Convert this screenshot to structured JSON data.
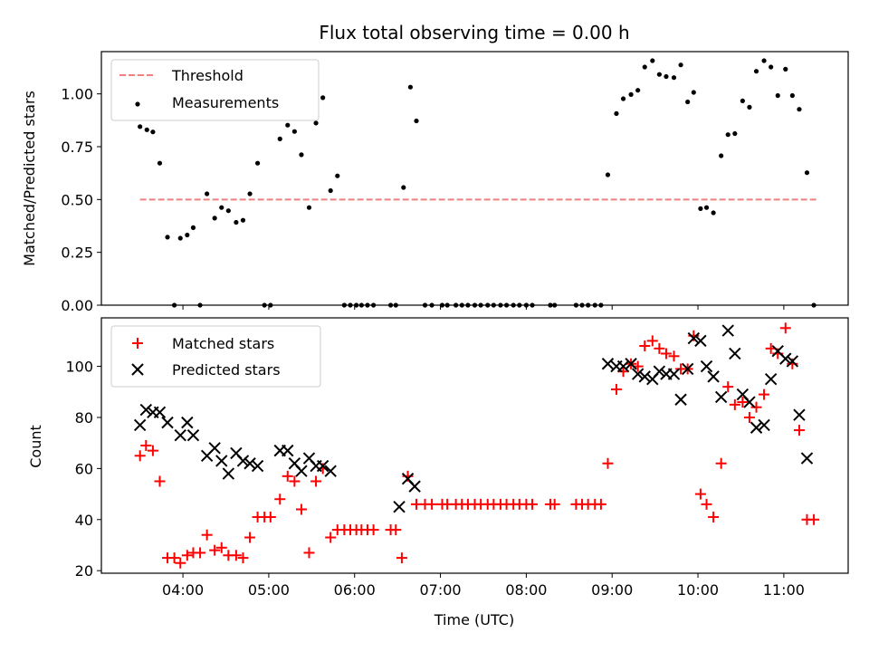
{
  "chart_data": [
    {
      "type": "scatter",
      "title": "Flux total observing time = 0.00 h",
      "ylabel": "Matched/Predicted stars",
      "xlabel": "",
      "x_unit": "hours UTC",
      "xlim": [
        3.05,
        11.75
      ],
      "ylim": [
        0,
        1.2
      ],
      "yticks": [
        0.0,
        0.25,
        0.5,
        0.75,
        1.0
      ],
      "yticklabels": [
        "0.00",
        "0.25",
        "0.50",
        "0.75",
        "1.00"
      ],
      "grid": false,
      "legend": {
        "placement": "upper-left",
        "entries": [
          "Threshold",
          "Measurements"
        ]
      },
      "series": [
        {
          "name": "Threshold",
          "kind": "dashed-line",
          "color": "#f08080",
          "points": [
            [
              3.5,
              0.5
            ],
            [
              11.4,
              0.5
            ]
          ]
        },
        {
          "name": "Measurements",
          "kind": "dots",
          "color": "#000000",
          "points": [
            [
              3.5,
              0.845
            ],
            [
              3.58,
              0.83
            ],
            [
              3.65,
              0.82
            ],
            [
              3.73,
              0.672
            ],
            [
              3.82,
              0.322
            ],
            [
              3.9,
              0.0
            ],
            [
              3.97,
              0.317
            ],
            [
              4.05,
              0.332
            ],
            [
              4.12,
              0.367
            ],
            [
              4.2,
              0.0
            ],
            [
              4.28,
              0.527
            ],
            [
              4.37,
              0.412
            ],
            [
              4.45,
              0.462
            ],
            [
              4.53,
              0.447
            ],
            [
              4.62,
              0.392
            ],
            [
              4.7,
              0.402
            ],
            [
              4.78,
              0.527
            ],
            [
              4.87,
              0.672
            ],
            [
              4.95,
              0.0
            ],
            [
              5.02,
              0.0
            ],
            [
              5.13,
              0.787
            ],
            [
              5.22,
              0.852
            ],
            [
              5.3,
              0.822
            ],
            [
              5.38,
              0.712
            ],
            [
              5.47,
              0.462
            ],
            [
              5.55,
              0.862
            ],
            [
              5.63,
              0.982
            ],
            [
              5.72,
              0.542
            ],
            [
              5.8,
              0.612
            ],
            [
              5.88,
              0.0
            ],
            [
              5.95,
              0.0
            ],
            [
              6.02,
              0.0
            ],
            [
              6.08,
              0.0
            ],
            [
              6.15,
              0.0
            ],
            [
              6.22,
              0.0
            ],
            [
              6.42,
              0.0
            ],
            [
              6.48,
              0.0
            ],
            [
              6.57,
              0.557
            ],
            [
              6.65,
              1.032
            ],
            [
              6.72,
              0.872
            ],
            [
              6.82,
              0.0
            ],
            [
              6.9,
              0.0
            ],
            [
              7.02,
              0.0
            ],
            [
              7.08,
              0.0
            ],
            [
              7.18,
              0.0
            ],
            [
              7.25,
              0.0
            ],
            [
              7.32,
              0.0
            ],
            [
              7.4,
              0.0
            ],
            [
              7.47,
              0.0
            ],
            [
              7.55,
              0.0
            ],
            [
              7.62,
              0.0
            ],
            [
              7.7,
              0.0
            ],
            [
              7.77,
              0.0
            ],
            [
              7.85,
              0.0
            ],
            [
              7.92,
              0.0
            ],
            [
              8.0,
              0.0
            ],
            [
              8.07,
              0.0
            ],
            [
              8.28,
              0.0
            ],
            [
              8.33,
              0.0
            ],
            [
              8.58,
              0.0
            ],
            [
              8.65,
              0.0
            ],
            [
              8.72,
              0.0
            ],
            [
              8.8,
              0.0
            ],
            [
              8.87,
              0.0
            ],
            [
              8.95,
              0.617
            ],
            [
              9.05,
              0.907
            ],
            [
              9.13,
              0.977
            ],
            [
              9.22,
              0.997
            ],
            [
              9.3,
              1.017
            ],
            [
              9.38,
              1.127
            ],
            [
              9.47,
              1.157
            ],
            [
              9.55,
              1.092
            ],
            [
              9.63,
              1.082
            ],
            [
              9.72,
              1.077
            ],
            [
              9.8,
              1.137
            ],
            [
              9.88,
              0.962
            ],
            [
              9.95,
              1.007
            ],
            [
              10.03,
              0.457
            ],
            [
              10.1,
              0.462
            ],
            [
              10.18,
              0.437
            ],
            [
              10.27,
              0.707
            ],
            [
              10.35,
              0.807
            ],
            [
              10.43,
              0.812
            ],
            [
              10.52,
              0.967
            ],
            [
              10.6,
              0.937
            ],
            [
              10.68,
              1.107
            ],
            [
              10.77,
              1.157
            ],
            [
              10.85,
              1.127
            ],
            [
              10.93,
              0.992
            ],
            [
              11.02,
              1.117
            ],
            [
              11.1,
              0.992
            ],
            [
              11.18,
              0.927
            ],
            [
              11.27,
              0.627
            ],
            [
              11.35,
              0.0
            ]
          ]
        }
      ]
    },
    {
      "type": "scatter",
      "title": "",
      "ylabel": "Count",
      "xlabel": "Time (UTC)",
      "x_unit": "hours UTC",
      "xlim": [
        3.05,
        11.75
      ],
      "ylim": [
        19,
        119
      ],
      "yticks": [
        20,
        40,
        60,
        80,
        100
      ],
      "yticklabels": [
        "20",
        "40",
        "60",
        "80",
        "100"
      ],
      "xticks": [
        4,
        5,
        6,
        7,
        8,
        9,
        10,
        11
      ],
      "xticklabels": [
        "04:00",
        "05:00",
        "06:00",
        "07:00",
        "08:00",
        "09:00",
        "10:00",
        "11:00"
      ],
      "grid": false,
      "legend": {
        "placement": "upper-left",
        "entries": [
          "Matched stars",
          "Predicted stars"
        ]
      },
      "series": [
        {
          "name": "Matched stars",
          "kind": "plus",
          "color": "#ff0000",
          "points": [
            [
              3.5,
              65
            ],
            [
              3.57,
              69
            ],
            [
              3.65,
              67
            ],
            [
              3.73,
              55
            ],
            [
              3.82,
              25
            ],
            [
              3.9,
              25
            ],
            [
              3.97,
              23
            ],
            [
              4.05,
              26
            ],
            [
              4.12,
              27
            ],
            [
              4.2,
              27
            ],
            [
              4.28,
              34
            ],
            [
              4.37,
              28
            ],
            [
              4.45,
              29
            ],
            [
              4.53,
              26
            ],
            [
              4.62,
              26
            ],
            [
              4.7,
              25
            ],
            [
              4.78,
              33
            ],
            [
              4.87,
              41
            ],
            [
              4.95,
              41
            ],
            [
              5.02,
              41
            ],
            [
              5.13,
              48
            ],
            [
              5.22,
              57
            ],
            [
              5.3,
              55
            ],
            [
              5.38,
              44
            ],
            [
              5.47,
              27
            ],
            [
              5.55,
              55
            ],
            [
              5.63,
              60
            ],
            [
              5.72,
              33
            ],
            [
              5.8,
              36
            ],
            [
              5.88,
              36
            ],
            [
              5.95,
              36
            ],
            [
              6.02,
              36
            ],
            [
              6.08,
              36
            ],
            [
              6.15,
              36
            ],
            [
              6.22,
              36
            ],
            [
              6.42,
              36
            ],
            [
              6.48,
              36
            ],
            [
              6.55,
              25
            ],
            [
              6.62,
              57
            ],
            [
              6.72,
              46
            ],
            [
              6.82,
              46
            ],
            [
              6.9,
              46
            ],
            [
              7.02,
              46
            ],
            [
              7.08,
              46
            ],
            [
              7.18,
              46
            ],
            [
              7.25,
              46
            ],
            [
              7.32,
              46
            ],
            [
              7.4,
              46
            ],
            [
              7.47,
              46
            ],
            [
              7.55,
              46
            ],
            [
              7.62,
              46
            ],
            [
              7.7,
              46
            ],
            [
              7.77,
              46
            ],
            [
              7.85,
              46
            ],
            [
              7.92,
              46
            ],
            [
              8.0,
              46
            ],
            [
              8.07,
              46
            ],
            [
              8.28,
              46
            ],
            [
              8.33,
              46
            ],
            [
              8.58,
              46
            ],
            [
              8.65,
              46
            ],
            [
              8.72,
              46
            ],
            [
              8.8,
              46
            ],
            [
              8.87,
              46
            ],
            [
              8.95,
              62
            ],
            [
              9.05,
              91
            ],
            [
              9.13,
              98
            ],
            [
              9.22,
              101
            ],
            [
              9.3,
              100
            ],
            [
              9.38,
              108
            ],
            [
              9.47,
              110
            ],
            [
              9.55,
              107
            ],
            [
              9.63,
              105
            ],
            [
              9.72,
              104
            ],
            [
              9.8,
              99
            ],
            [
              9.88,
              99
            ],
            [
              9.95,
              112
            ],
            [
              10.03,
              50
            ],
            [
              10.1,
              46
            ],
            [
              10.18,
              41
            ],
            [
              10.27,
              62
            ],
            [
              10.35,
              92
            ],
            [
              10.43,
              85
            ],
            [
              10.52,
              86
            ],
            [
              10.6,
              80
            ],
            [
              10.68,
              84
            ],
            [
              10.77,
              89
            ],
            [
              10.85,
              107
            ],
            [
              10.93,
              105
            ],
            [
              11.02,
              115
            ],
            [
              11.1,
              101
            ],
            [
              11.18,
              75
            ],
            [
              11.27,
              40
            ],
            [
              11.35,
              40
            ]
          ]
        },
        {
          "name": "Predicted stars",
          "kind": "x",
          "color": "#000000",
          "points": [
            [
              3.5,
              77
            ],
            [
              3.57,
              83
            ],
            [
              3.65,
              82
            ],
            [
              3.73,
              82
            ],
            [
              3.82,
              78
            ],
            [
              3.97,
              73
            ],
            [
              4.05,
              78
            ],
            [
              4.12,
              73
            ],
            [
              4.28,
              65
            ],
            [
              4.37,
              68
            ],
            [
              4.45,
              63
            ],
            [
              4.53,
              58
            ],
            [
              4.62,
              66
            ],
            [
              4.7,
              63
            ],
            [
              4.78,
              62
            ],
            [
              4.87,
              61
            ],
            [
              5.13,
              67
            ],
            [
              5.22,
              67
            ],
            [
              5.3,
              62
            ],
            [
              5.38,
              59
            ],
            [
              5.47,
              64
            ],
            [
              5.55,
              61
            ],
            [
              5.63,
              61
            ],
            [
              5.72,
              59
            ],
            [
              6.52,
              45
            ],
            [
              6.62,
              56
            ],
            [
              6.7,
              53
            ],
            [
              8.95,
              101
            ],
            [
              9.05,
              100
            ],
            [
              9.13,
              100
            ],
            [
              9.22,
              101
            ],
            [
              9.3,
              97
            ],
            [
              9.38,
              96
            ],
            [
              9.47,
              95
            ],
            [
              9.55,
              98
            ],
            [
              9.63,
              97
            ],
            [
              9.72,
              97
            ],
            [
              9.8,
              87
            ],
            [
              9.88,
              99
            ],
            [
              9.95,
              111
            ],
            [
              10.03,
              110
            ],
            [
              10.1,
              100
            ],
            [
              10.18,
              96
            ],
            [
              10.27,
              88
            ],
            [
              10.35,
              114
            ],
            [
              10.43,
              105
            ],
            [
              10.52,
              89
            ],
            [
              10.6,
              86
            ],
            [
              10.68,
              76
            ],
            [
              10.77,
              77
            ],
            [
              10.85,
              95
            ],
            [
              10.93,
              106
            ],
            [
              11.02,
              103
            ],
            [
              11.1,
              102
            ],
            [
              11.18,
              81
            ],
            [
              11.27,
              64
            ]
          ]
        }
      ]
    }
  ]
}
